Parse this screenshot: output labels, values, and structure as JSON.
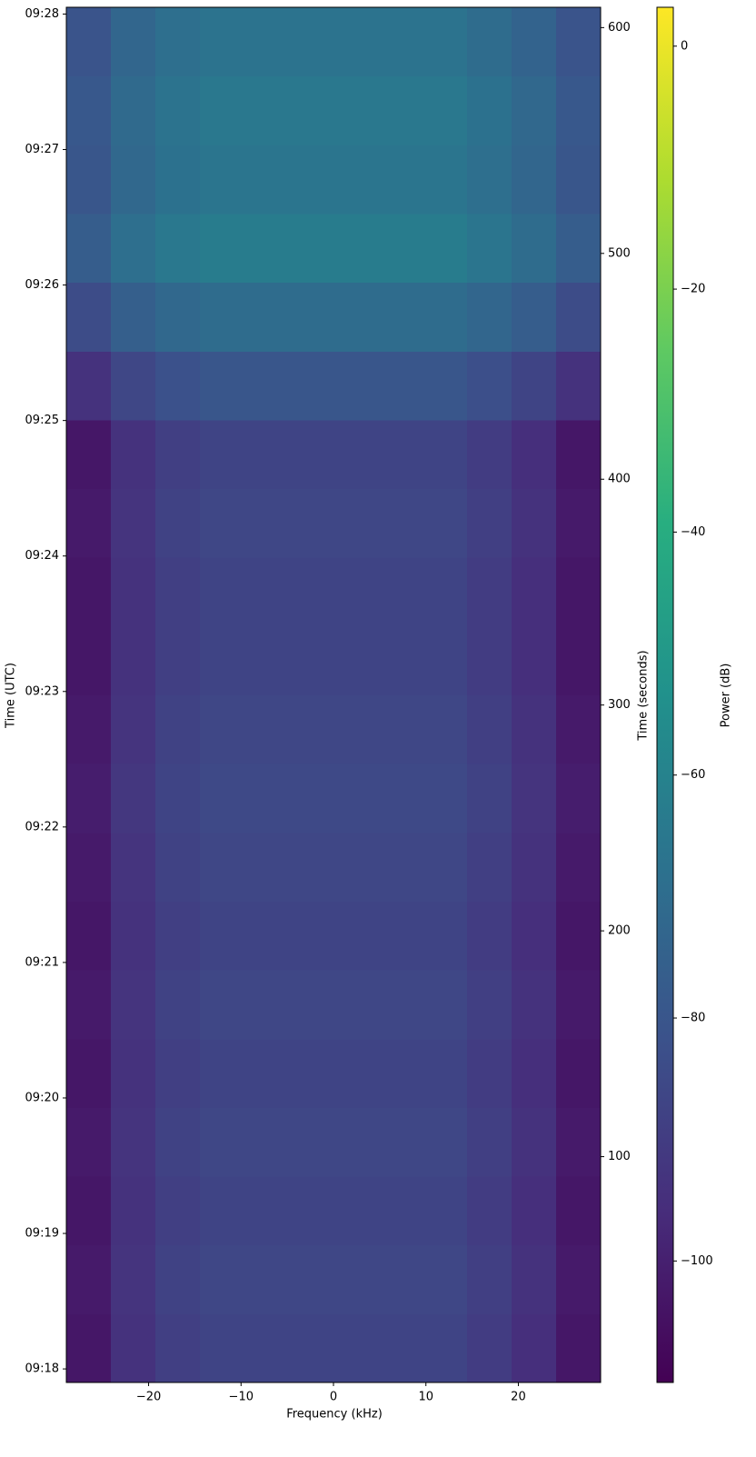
{
  "chart_data": {
    "type": "heatmap",
    "colormap": "viridis",
    "xlabel": "Frequency (kHz)",
    "ylabel": "Time (UTC)",
    "y2label": "Time (seconds)",
    "colorbar_label": "Power (dB)",
    "xlim": [
      -28.9,
      28.9
    ],
    "xticks": [
      {
        "value": -20,
        "label": "−20"
      },
      {
        "value": -10,
        "label": "−10"
      },
      0,
      10,
      20
    ],
    "ylim": [
      0,
      609
    ],
    "yticks": [
      {
        "value": 6,
        "label": "09:18"
      },
      {
        "value": 66,
        "label": "09:19"
      },
      {
        "value": 126,
        "label": "09:20"
      },
      {
        "value": 186,
        "label": "09:21"
      },
      {
        "value": 246,
        "label": "09:22"
      },
      {
        "value": 306,
        "label": "09:23"
      },
      {
        "value": 366,
        "label": "09:24"
      },
      {
        "value": 426,
        "label": "09:25"
      },
      {
        "value": 486,
        "label": "09:26"
      },
      {
        "value": 546,
        "label": "09:27"
      },
      {
        "value": 606,
        "label": "09:28"
      }
    ],
    "y2lim": [
      0,
      609
    ],
    "y2ticks": [
      100,
      200,
      300,
      400,
      500,
      600
    ],
    "clim": [
      -110,
      3.2
    ],
    "cticks": [
      {
        "value": -100,
        "label": "−100"
      },
      {
        "value": -80,
        "label": "−80"
      },
      {
        "value": -60,
        "label": "−60"
      },
      {
        "value": -40,
        "label": "−40"
      },
      {
        "value": -20,
        "label": "−20"
      },
      0
    ],
    "values": [
      [
        -103,
        -94,
        -89,
        -87,
        -87,
        -87,
        -87,
        -87,
        -87,
        -90,
        -95,
        -103
      ],
      [
        -102,
        -93,
        -88,
        -86,
        -86,
        -86,
        -86,
        -86,
        -86,
        -89,
        -94,
        -102
      ],
      [
        -103,
        -94,
        -89,
        -87,
        -87,
        -87,
        -87,
        -87,
        -87,
        -90,
        -95,
        -103
      ],
      [
        -102,
        -93,
        -88,
        -86,
        -86,
        -86,
        -86,
        -86,
        -86,
        -89,
        -94,
        -102
      ],
      [
        -103,
        -94,
        -89,
        -87,
        -87,
        -87,
        -87,
        -87,
        -87,
        -90,
        -95,
        -103
      ],
      [
        -102,
        -93,
        -88,
        -86,
        -86,
        -86,
        -86,
        -86,
        -86,
        -89,
        -94,
        -102
      ],
      [
        -103,
        -94,
        -89,
        -87,
        -87,
        -87,
        -87,
        -87,
        -87,
        -90,
        -95,
        -103
      ],
      [
        -102,
        -93,
        -88,
        -86,
        -86,
        -86,
        -86,
        -86,
        -86,
        -89,
        -94,
        -102
      ],
      [
        -101,
        -92,
        -87,
        -85,
        -85,
        -85,
        -85,
        -85,
        -85,
        -88,
        -93,
        -101
      ],
      [
        -102,
        -93,
        -88,
        -86,
        -86,
        -86,
        -86,
        -86,
        -86,
        -89,
        -94,
        -102
      ],
      [
        -103,
        -94,
        -89,
        -87,
        -87,
        -87,
        -87,
        -87,
        -87,
        -90,
        -95,
        -103
      ],
      [
        -103,
        -94,
        -89,
        -87,
        -87,
        -87,
        -87,
        -87,
        -87,
        -90,
        -95,
        -103
      ],
      [
        -102,
        -93,
        -88,
        -86,
        -86,
        -86,
        -86,
        -86,
        -86,
        -89,
        -94,
        -102
      ],
      [
        -103,
        -94,
        -89,
        -87,
        -87,
        -87,
        -87,
        -87,
        -87,
        -90,
        -95,
        -103
      ],
      [
        -94,
        -86,
        -82,
        -80,
        -80,
        -80,
        -80,
        -80,
        -80,
        -83,
        -87,
        -94
      ],
      [
        -84,
        -76,
        -72,
        -70,
        -70,
        -70,
        -70,
        -70,
        -70,
        -73,
        -77,
        -84
      ],
      [
        -77,
        -69,
        -65,
        -63,
        -63,
        -63,
        -63,
        -63,
        -63,
        -66,
        -70,
        -77
      ],
      [
        -80,
        -72,
        -68,
        -66,
        -66,
        -66,
        -66,
        -66,
        -66,
        -69,
        -73,
        -80
      ],
      [
        -79,
        -71,
        -67,
        -65,
        -65,
        -65,
        -65,
        -65,
        -65,
        -68,
        -72,
        -79
      ],
      [
        -81,
        -73,
        -69,
        -67,
        -67,
        -67,
        -67,
        -67,
        -67,
        -70,
        -74,
        -81
      ]
    ]
  }
}
